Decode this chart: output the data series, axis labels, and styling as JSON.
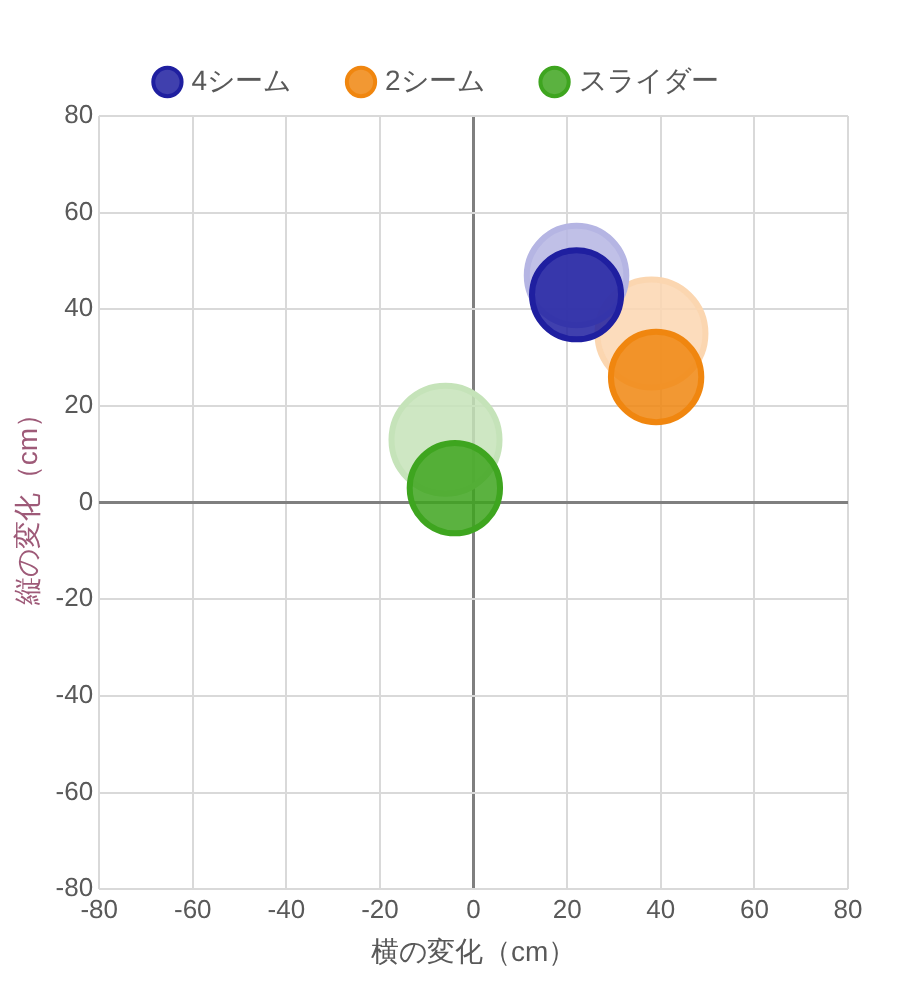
{
  "chart_data": {
    "type": "bubble",
    "xlabel": "横の変化（cm）",
    "ylabel": "縦の変化（cm）",
    "xlim": [
      -80,
      80
    ],
    "xticks": [
      -80,
      -60,
      -40,
      -20,
      0,
      20,
      40,
      60,
      80
    ],
    "ylim": [
      -80,
      80
    ],
    "yticks": [
      -80,
      -60,
      -40,
      -20,
      0,
      20,
      40,
      60,
      80
    ],
    "grid": true,
    "legend": "top",
    "marker": "circle",
    "series": [
      {
        "name": "4シーム",
        "color": "#1f1fa0",
        "colors": [
          "#b5b5e3",
          "#1f1fa0"
        ],
        "x": [
          22,
          22
        ],
        "values": [
          47,
          43
        ],
        "sizes": [
          0.85,
          0.68
        ]
      },
      {
        "name": "2シーム",
        "color": "#f0860f",
        "colors": [
          "#fbd6b0",
          "#f0860f"
        ],
        "x": [
          38,
          39
        ],
        "values": [
          35,
          26
        ],
        "sizes": [
          1,
          0.7
        ]
      },
      {
        "name": "スライダー",
        "color": "#3ea51f",
        "colors": [
          "#c5e3b9",
          "#3ea51f"
        ],
        "x": [
          -6,
          -4
        ],
        "values": [
          13,
          3
        ],
        "sizes": [
          1,
          0.7
        ]
      }
    ]
  }
}
